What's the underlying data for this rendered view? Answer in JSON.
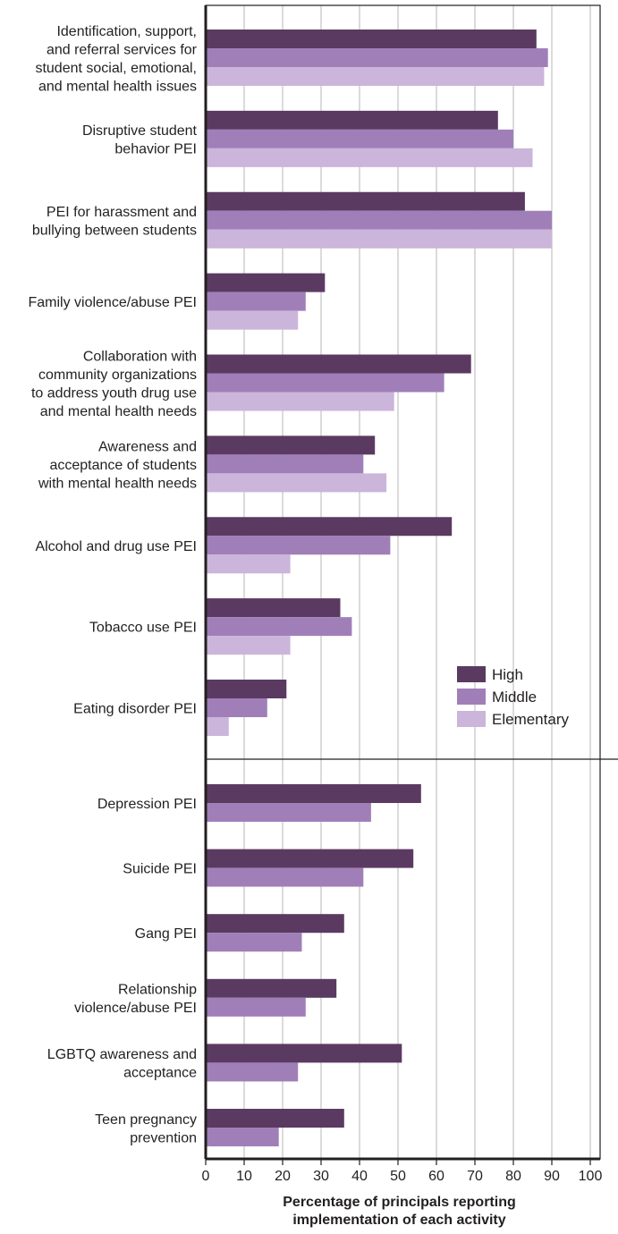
{
  "chart_data": {
    "type": "bar",
    "orientation": "horizontal",
    "xlabel_lines": [
      "Percentage of principals reporting",
      "implementation of each activity"
    ],
    "xlim": [
      0,
      100
    ],
    "x_ticks": [
      0,
      10,
      20,
      30,
      40,
      50,
      60,
      70,
      80,
      90,
      100
    ],
    "grid": true,
    "legend_position": "right",
    "series": [
      {
        "name": "High",
        "color": "#5b3a62"
      },
      {
        "name": "Middle",
        "color": "#a07fb9"
      },
      {
        "name": "Elementary",
        "color": "#cbb5da"
      }
    ],
    "groups": [
      {
        "categories": [
          {
            "label_lines": [
              "Identification, support,",
              "and referral services for",
              "student social, emotional,",
              "and mental health issues"
            ],
            "values": [
              86,
              89,
              88
            ]
          },
          {
            "label_lines": [
              "Disruptive student",
              "behavior PEI"
            ],
            "values": [
              76,
              80,
              85
            ]
          },
          {
            "label_lines": [
              "PEI for harassment and",
              "bullying between students"
            ],
            "values": [
              83,
              90,
              90
            ]
          },
          {
            "label_lines": [
              "Family violence/abuse PEI"
            ],
            "values": [
              31,
              26,
              24
            ]
          },
          {
            "label_lines": [
              "Collaboration with",
              "community organizations",
              "to address youth drug use",
              "and mental health needs"
            ],
            "values": [
              69,
              62,
              49
            ]
          },
          {
            "label_lines": [
              "Awareness and",
              "acceptance of students",
              "with mental health needs"
            ],
            "values": [
              44,
              41,
              47
            ]
          },
          {
            "label_lines": [
              "Alcohol and drug use PEI"
            ],
            "values": [
              64,
              48,
              22
            ]
          },
          {
            "label_lines": [
              "Tobacco use PEI"
            ],
            "values": [
              35,
              38,
              22
            ]
          },
          {
            "label_lines": [
              "Eating disorder PEI"
            ],
            "values": [
              21,
              16,
              6
            ]
          }
        ]
      },
      {
        "categories": [
          {
            "label_lines": [
              "Depression PEI"
            ],
            "values": [
              56,
              43
            ]
          },
          {
            "label_lines": [
              "Suicide PEI"
            ],
            "values": [
              54,
              41
            ]
          },
          {
            "label_lines": [
              "Gang PEI"
            ],
            "values": [
              36,
              25
            ]
          },
          {
            "label_lines": [
              "Relationship",
              "violence/abuse PEI"
            ],
            "values": [
              34,
              26
            ]
          },
          {
            "label_lines": [
              "LGBTQ awareness and",
              "acceptance"
            ],
            "values": [
              51,
              24
            ]
          },
          {
            "label_lines": [
              "Teen pregnancy",
              "prevention"
            ],
            "values": [
              36,
              19
            ]
          }
        ]
      }
    ]
  }
}
